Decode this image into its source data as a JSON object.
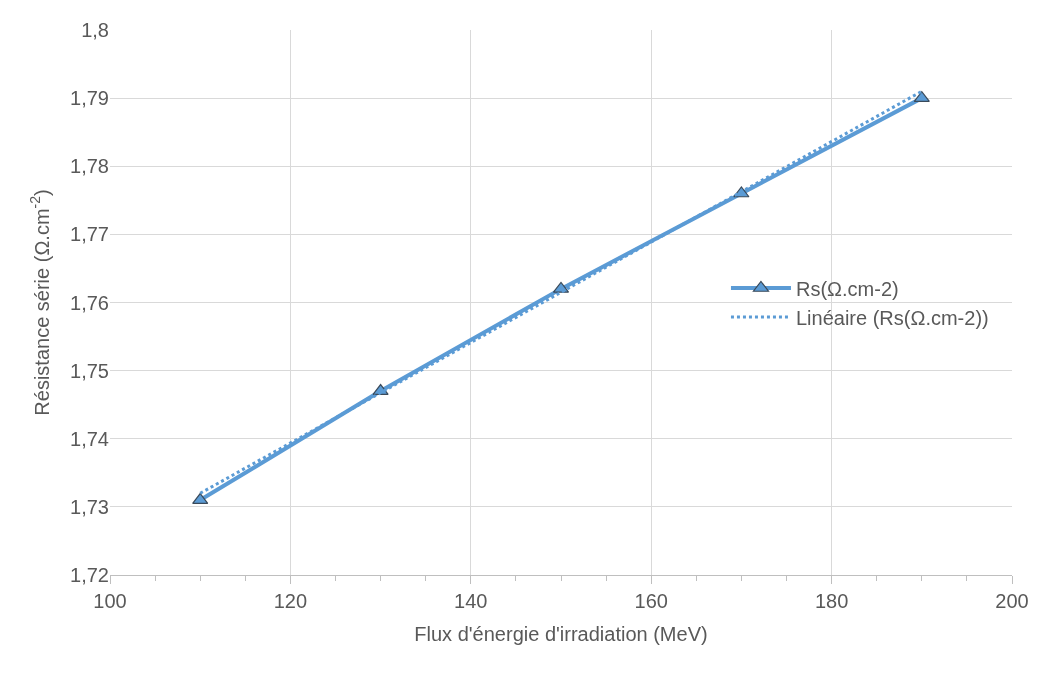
{
  "chart_data": {
    "type": "line",
    "xlabel": "Flux d'énergie d'irradiation (MeV)",
    "ylabel": "Résistance série (Ω.cm$^{-2}$)",
    "x": [
      110,
      130,
      150,
      170,
      190
    ],
    "series": [
      {
        "name": "Rs(Ω.cm-2)",
        "color": "#5b9bd5",
        "values": [
          1.731,
          1.747,
          1.762,
          1.776,
          1.79
        ],
        "marker": "triangle",
        "line_style": "solid"
      },
      {
        "name": "Linéaire (Rs(Ω.cm-2))",
        "color": "#5b9bd5",
        "x": [
          110,
          190
        ],
        "values": [
          1.732,
          1.791
        ],
        "marker": "none",
        "line_style": "dotted"
      }
    ],
    "xlim": [
      100,
      200
    ],
    "xticks": [
      100,
      120,
      140,
      160,
      180,
      200
    ],
    "ylim": [
      1.72,
      1.8
    ],
    "yticks": [
      {
        "value": 1.72,
        "label": "1,72"
      },
      {
        "value": 1.73,
        "label": "1,73"
      },
      {
        "value": 1.74,
        "label": "1,74"
      },
      {
        "value": 1.75,
        "label": "1,75"
      },
      {
        "value": 1.76,
        "label": "1,76"
      },
      {
        "value": 1.77,
        "label": "1,77"
      },
      {
        "value": 1.78,
        "label": "1,78"
      },
      {
        "value": 1.79,
        "label": "1,79"
      },
      {
        "value": 1.8,
        "label": "1,8"
      }
    ],
    "grid": true,
    "legend": "right"
  }
}
